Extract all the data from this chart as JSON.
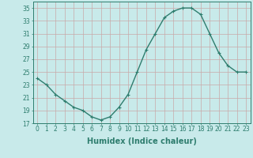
{
  "x": [
    0,
    1,
    2,
    3,
    4,
    5,
    6,
    7,
    8,
    9,
    10,
    11,
    12,
    13,
    14,
    15,
    16,
    17,
    18,
    19,
    20,
    21,
    22,
    23
  ],
  "y": [
    24,
    23,
    21.5,
    20.5,
    19.5,
    19,
    18,
    17.5,
    18,
    19.5,
    21.5,
    25,
    28.5,
    31,
    33.5,
    34.5,
    35,
    35,
    34,
    31,
    28,
    26,
    25,
    25
  ],
  "line_color": "#2e7d6e",
  "marker": "+",
  "marker_size": 3,
  "bg_color": "#c8eaea",
  "grid_color": "#b0c8c8",
  "xlabel": "Humidex (Indice chaleur)",
  "xlabel_fontsize": 7,
  "ylim": [
    17,
    36
  ],
  "yticks": [
    17,
    19,
    21,
    23,
    25,
    27,
    29,
    31,
    33,
    35
  ],
  "xlim": [
    -0.5,
    23.5
  ],
  "xticks": [
    0,
    1,
    2,
    3,
    4,
    5,
    6,
    7,
    8,
    9,
    10,
    11,
    12,
    13,
    14,
    15,
    16,
    17,
    18,
    19,
    20,
    21,
    22,
    23
  ],
  "tick_fontsize": 5.5,
  "line_width": 1.0
}
